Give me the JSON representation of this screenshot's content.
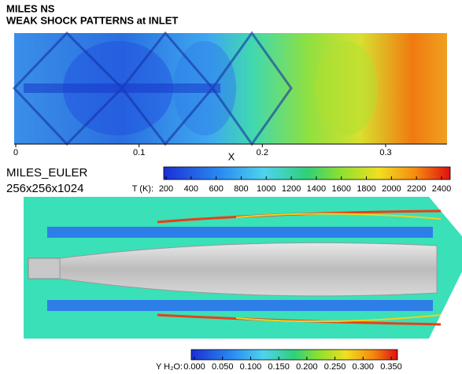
{
  "header": {
    "title_lines": [
      "MILES NS",
      "WEAK SHOCK PATTERNS at INLET"
    ]
  },
  "top_plot": {
    "x_axis": {
      "label": "X",
      "ticks": [
        "0",
        "0.1",
        "0.2",
        "0.3"
      ]
    }
  },
  "run_label": {
    "name": "MILES_EULER",
    "grid": "256x256x1024"
  },
  "temperature_colorbar": {
    "label": "T (K):",
    "ticks": [
      "200",
      "400",
      "600",
      "800",
      "1000",
      "1200",
      "1400",
      "1600",
      "1800",
      "2000",
      "2200",
      "2400"
    ]
  },
  "water_colorbar": {
    "label": "Y H₂O:",
    "ticks": [
      "0.000",
      "0.050",
      "0.100",
      "0.150",
      "0.200",
      "0.250",
      "0.300",
      "0.350"
    ]
  }
}
